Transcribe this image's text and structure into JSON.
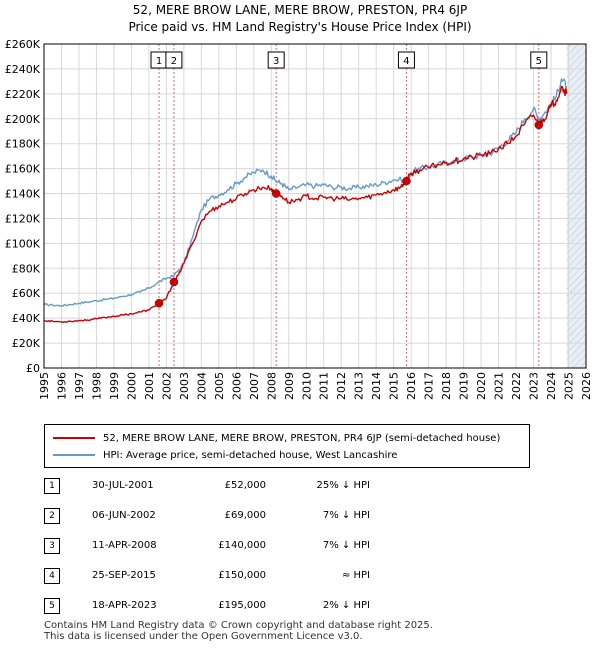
{
  "title_line1": "52, MERE BROW LANE, MERE BROW, PRESTON, PR4 6JP",
  "title_line2": "Price paid vs. HM Land Registry's House Price Index (HPI)",
  "colors": {
    "price_line": "#cc0000",
    "hpi_line": "#6699cc",
    "shade": "#e8eef8",
    "grid": "#d8d8d8",
    "marker_line": "#e06666",
    "hatch": "#bbbbbb"
  },
  "legend": {
    "property": "52, MERE BROW LANE, MERE BROW, PRESTON, PR4 6JP (semi-detached house)",
    "hpi": "HPI: Average price, semi-detached house, West Lancashire"
  },
  "sales": [
    {
      "num": "1",
      "date": "30-JUL-2001",
      "price": "£52,000",
      "hpi": "25% ↓ HPI"
    },
    {
      "num": "2",
      "date": "06-JUN-2002",
      "price": "£69,000",
      "hpi": "7% ↓ HPI"
    },
    {
      "num": "3",
      "date": "11-APR-2008",
      "price": "£140,000",
      "hpi": "7% ↓ HPI"
    },
    {
      "num": "4",
      "date": "25-SEP-2015",
      "price": "£150,000",
      "hpi": "≈ HPI"
    },
    {
      "num": "5",
      "date": "18-APR-2023",
      "price": "£195,000",
      "hpi": "2% ↓ HPI"
    }
  ],
  "footer": {
    "line1": "Contains HM Land Registry data © Crown copyright and database right 2025.",
    "line2": "This data is licensed under the Open Government Licence v3.0."
  },
  "chart_data": {
    "type": "line",
    "title": "52, MERE BROW LANE, MERE BROW, PRESTON, PR4 6JP — Price paid vs. HM Land Registry's House Price Index (HPI)",
    "xlabel": "",
    "ylabel": "",
    "xlim": [
      1995,
      2026
    ],
    "ylim": [
      0,
      260000
    ],
    "grid": true,
    "legend_position": "below",
    "y_ticks": [
      0,
      20000,
      40000,
      60000,
      80000,
      100000,
      120000,
      140000,
      160000,
      180000,
      200000,
      220000,
      240000,
      260000
    ],
    "y_tick_labels": [
      "£0",
      "£20K",
      "£40K",
      "£60K",
      "£80K",
      "£100K",
      "£120K",
      "£140K",
      "£160K",
      "£180K",
      "£200K",
      "£220K",
      "£240K",
      "£260K"
    ],
    "x_ticks": [
      1995,
      1996,
      1997,
      1998,
      1999,
      2000,
      2001,
      2002,
      2003,
      2004,
      2005,
      2006,
      2007,
      2008,
      2009,
      2010,
      2011,
      2012,
      2013,
      2014,
      2015,
      2016,
      2017,
      2018,
      2019,
      2020,
      2021,
      2022,
      2023,
      2024,
      2025,
      2026
    ],
    "x_tick_labels": [
      "1995",
      "1996",
      "1997",
      "1998",
      "1999",
      "2000",
      "2001",
      "2002",
      "2003",
      "2004",
      "2005",
      "2006",
      "2007",
      "2008",
      "2009",
      "2010",
      "2011",
      "2012",
      "2013",
      "2014",
      "2015",
      "2016",
      "2017",
      "2018",
      "2019",
      "2020",
      "2021",
      "2022",
      "2023",
      "2024",
      "2025",
      "2026"
    ],
    "shaded_region": [
      2024.9,
      2026
    ],
    "series": [
      {
        "name": "52, MERE BROW LANE, MERE BROW, PRESTON, PR4 6JP (semi-detached house)",
        "x": [
          1995.0,
          1995.5,
          1996.0,
          1996.5,
          1997.0,
          1997.5,
          1998.0,
          1998.5,
          1999.0,
          1999.5,
          2000.0,
          2000.5,
          2001.0,
          2001.58,
          2001.7,
          2002.0,
          2002.43,
          2002.7,
          2003.0,
          2003.5,
          2004.0,
          2004.5,
          2005.0,
          2005.5,
          2006.0,
          2006.5,
          2007.0,
          2007.5,
          2008.0,
          2008.28,
          2008.6,
          2009.0,
          2009.5,
          2010.0,
          2010.5,
          2011.0,
          2011.5,
          2012.0,
          2012.5,
          2013.0,
          2013.5,
          2014.0,
          2014.5,
          2015.0,
          2015.4,
          2015.73,
          2016.0,
          2016.5,
          2017.0,
          2017.5,
          2018.0,
          2018.5,
          2019.0,
          2019.5,
          2020.0,
          2020.5,
          2021.0,
          2021.5,
          2022.0,
          2022.5,
          2023.0,
          2023.3,
          2023.5,
          2023.8,
          2024.0,
          2024.3,
          2024.6,
          2024.9
        ],
        "values": [
          38000,
          37500,
          37000,
          37500,
          38000,
          38500,
          39500,
          40500,
          41500,
          42500,
          43500,
          45000,
          46500,
          52000,
          53000,
          56000,
          69000,
          75000,
          84000,
          100000,
          118000,
          126000,
          130000,
          133000,
          136000,
          140000,
          143000,
          145000,
          144000,
          140000,
          138000,
          133000,
          135000,
          138000,
          136000,
          137000,
          136000,
          136000,
          135000,
          136000,
          137000,
          139000,
          141000,
          143000,
          145000,
          150000,
          156000,
          159000,
          161000,
          163000,
          165000,
          166000,
          168000,
          169000,
          171000,
          172000,
          176000,
          180000,
          186000,
          196000,
          203000,
          195000,
          198000,
          205000,
          210000,
          215000,
          226000,
          220000
        ]
      },
      {
        "name": "HPI: Average price, semi-detached house, West Lancashire",
        "x": [
          1995.0,
          1995.5,
          1996.0,
          1996.5,
          1997.0,
          1997.5,
          1998.0,
          1998.5,
          1999.0,
          1999.5,
          2000.0,
          2000.5,
          2001.0,
          2001.58,
          2002.0,
          2002.43,
          2003.0,
          2003.5,
          2004.0,
          2004.5,
          2005.0,
          2005.5,
          2006.0,
          2006.5,
          2007.0,
          2007.5,
          2008.0,
          2008.28,
          2008.6,
          2009.0,
          2009.5,
          2010.0,
          2010.5,
          2011.0,
          2011.5,
          2012.0,
          2012.5,
          2013.0,
          2013.5,
          2014.0,
          2014.5,
          2015.0,
          2015.73,
          2016.0,
          2016.5,
          2017.0,
          2017.5,
          2018.0,
          2018.5,
          2019.0,
          2019.5,
          2020.0,
          2020.5,
          2021.0,
          2021.5,
          2022.0,
          2022.5,
          2023.0,
          2023.3,
          2023.5,
          2024.0,
          2024.3,
          2024.6,
          2024.9
        ],
        "values": [
          51000,
          50500,
          50000,
          51000,
          52000,
          53000,
          54000,
          55000,
          56000,
          57500,
          59000,
          61000,
          64000,
          69000,
          72000,
          74000,
          84000,
          105000,
          127000,
          136000,
          139000,
          143000,
          148000,
          153000,
          157000,
          159000,
          154000,
          150000,
          148000,
          143000,
          145000,
          147000,
          146000,
          147000,
          145000,
          145000,
          144000,
          145000,
          146000,
          147000,
          149000,
          151000,
          151000,
          157000,
          160000,
          161000,
          163000,
          165000,
          166000,
          168000,
          169000,
          171000,
          172000,
          177000,
          182000,
          189000,
          200000,
          208000,
          200000,
          202000,
          212000,
          218000,
          232000,
          226000
        ]
      }
    ],
    "sale_markers": [
      {
        "label": "1",
        "x": 2001.58,
        "value": 52000
      },
      {
        "label": "2",
        "x": 2002.43,
        "value": 69000
      },
      {
        "label": "3",
        "x": 2008.28,
        "value": 140000
      },
      {
        "label": "4",
        "x": 2015.73,
        "value": 150000
      },
      {
        "label": "5",
        "x": 2023.3,
        "value": 195000
      }
    ]
  }
}
